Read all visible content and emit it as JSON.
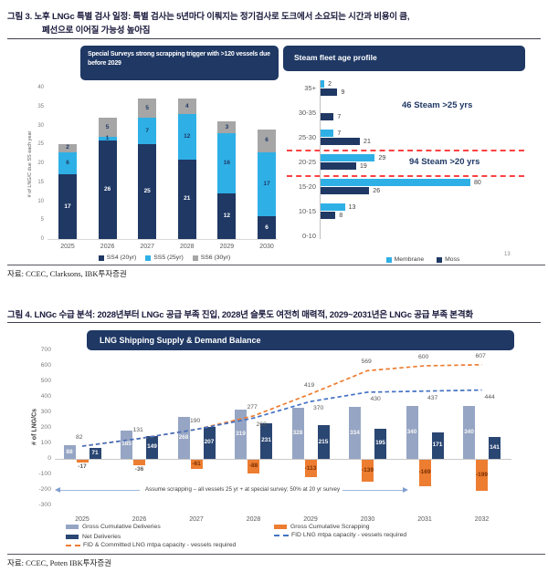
{
  "page": {
    "figure3": {
      "title_line1": "그림 3. 노후 LNGc 특별 검사 일정: 특별 검사는 5년마다 이뤄지는 정기검사로 도크에서 소요되는 시간과 비용이 큼,",
      "title_line2": "폐선으로 이어질 가능성 높아짐",
      "source": "자료: CCEC, Clarksons, IBK투자증권",
      "page_marker": "13"
    },
    "figure4": {
      "title": "그림 4. LNGc 수급 분석: 2028년부터 LNGc 공급 부족 진입, 2028년 슬롯도 여전히 매력적, 2029~2031년은 LNGc 공급 부족 본격화",
      "source": "자료: CCEC, Poten IBK투자증권"
    }
  },
  "chart_data": [
    {
      "id": "special-surveys",
      "type": "bar",
      "variant": "stacked-column",
      "title": "Special Surveys strong scrapping trigger with >120 vessels due before 2029",
      "categories": [
        "2025",
        "2026",
        "2027",
        "2028",
        "2029",
        "2030"
      ],
      "series": [
        {
          "name": "SS4 (20yr)",
          "color": "#1f3864",
          "values": [
            17,
            26,
            25,
            21,
            12,
            6
          ]
        },
        {
          "name": "SS5 (25yr)",
          "color": "#2eb0e6",
          "values": [
            6,
            1,
            7,
            12,
            16,
            17
          ]
        },
        {
          "name": "SS6 (30yr)",
          "color": "#a6a6a6",
          "values": [
            2,
            5,
            5,
            4,
            3,
            6
          ]
        }
      ],
      "ylabel": "# of LNG/C due SS each year",
      "ylim": [
        0,
        40
      ],
      "yticks": [
        0,
        5,
        10,
        15,
        20,
        25,
        30,
        35,
        40
      ],
      "grid": false,
      "legend_position": "bottom"
    },
    {
      "id": "steam-fleet-age",
      "type": "bar",
      "variant": "horizontal-grouped",
      "title": "Steam fleet age profile",
      "categories": [
        "35+",
        "30-35",
        "25-30",
        "20-25",
        "15-20",
        "10-15",
        "0-10"
      ],
      "series": [
        {
          "name": "Membrane",
          "color": "#2eb0e6",
          "values": [
            2,
            0,
            7,
            29,
            80,
            13,
            0
          ]
        },
        {
          "name": "Moss",
          "color": "#1f3864",
          "values": [
            9,
            7,
            21,
            19,
            26,
            8,
            0
          ]
        }
      ],
      "xlim": [
        0,
        88
      ],
      "annotations": [
        {
          "text": "46 Steam >25 yrs"
        },
        {
          "text": "94 Steam >20 yrs"
        }
      ],
      "divider_color": "#fb4141",
      "grid": false,
      "legend_position": "bottom"
    },
    {
      "id": "lng-supply-demand",
      "type": "combo",
      "title": "LNG Shipping Supply & Demand Balance",
      "categories": [
        "2025",
        "2026",
        "2027",
        "2028",
        "2029",
        "2030",
        "2031",
        "2032"
      ],
      "bar_series": [
        {
          "name": "Gross Cumulative Deliveries",
          "color": "#96a5c4",
          "label_color": "#f5f5f5",
          "values": [
            88,
            185,
            268,
            319,
            328,
            334,
            340,
            340
          ]
        },
        {
          "name": "Gross Cumulative Scrapping",
          "color": "#ed7d31",
          "label_color": "#7b2e00",
          "values": [
            -17,
            -36,
            -61,
            -88,
            -113,
            -139,
            -169,
            -199
          ]
        },
        {
          "name": "Net Deliveries",
          "color": "#2a4672",
          "label_color": "#ffffff",
          "values": [
            71,
            149,
            207,
            231,
            215,
            195,
            171,
            141
          ]
        }
      ],
      "line_series": [
        {
          "name": "FID & Committed LNG mtpa capacity - vessels required",
          "color": "#ed7d31",
          "dash": true,
          "values": [
            82,
            131,
            190,
            277,
            419,
            569,
            600,
            607
          ],
          "label_side": "above",
          "label_from": 0
        },
        {
          "name": "FID LNG mtpa capacity - vessels required",
          "color": "#4472c4",
          "dash": true,
          "values": [
            82,
            131,
            190,
            263,
            370,
            430,
            437,
            444
          ],
          "label_side": "below",
          "label_from": 3
        }
      ],
      "ylabel": "# of LNG/Cs",
      "ylim": [
        -300,
        700
      ],
      "yticks": [
        700,
        600,
        500,
        400,
        300,
        200,
        100,
        0,
        -100,
        -200,
        -300
      ],
      "annotation": "Assume scrapping – all vessels 25 yr + at special survey; 50% at 20 yr survey",
      "grid": false,
      "legend_position": "bottom"
    }
  ]
}
